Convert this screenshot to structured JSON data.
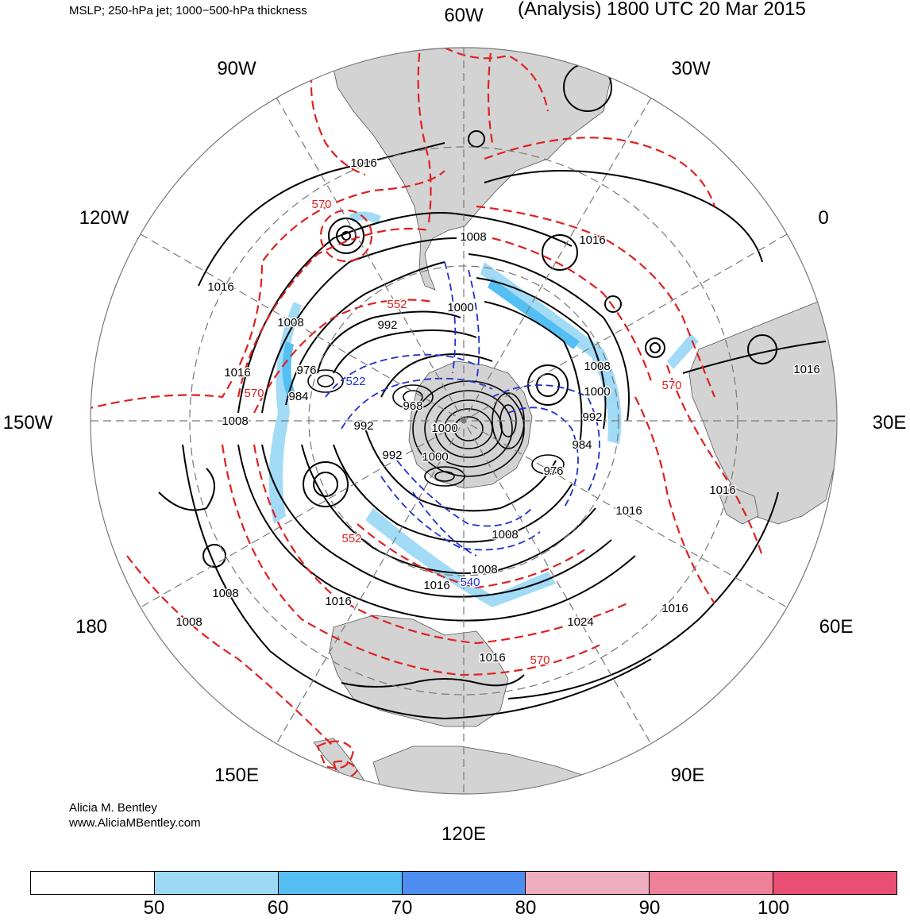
{
  "header": {
    "fields": "MSLP; 250-hPa jet; 1000−500-hPa thickness",
    "valid": "(Analysis) 1800 UTC 20 Mar 2015"
  },
  "longitudes": [
    "60W",
    "30W",
    "0",
    "30E",
    "60E",
    "90E",
    "120E",
    "150E",
    "180",
    "150W",
    "120W",
    "90W"
  ],
  "isobar_labels": [
    "1016",
    "1008",
    "1016",
    "1016",
    "1008",
    "992",
    "976",
    "984",
    "1016",
    "992",
    "968",
    "1008",
    "992",
    "1000",
    "1000",
    "992",
    "984",
    "976",
    "1008",
    "1000",
    "1016",
    "1024",
    "1016",
    "1016",
    "1008",
    "1016",
    "1016",
    "1008",
    "1008",
    "1016",
    "1016",
    "1008",
    "1000"
  ],
  "thickness_labels": [
    "570",
    "552",
    "570",
    "570",
    "552",
    "522",
    "540",
    "570"
  ],
  "credit": {
    "author": "Alicia M. Bentley",
    "site": "www.AliciaMBentley.com"
  },
  "colorbar": {
    "colors": [
      "#ffffff",
      "#9dd9f6",
      "#55bff3",
      "#4d8ef0",
      "#efaebf",
      "#ee8098",
      "#e84f73"
    ],
    "ticks": [
      "50",
      "60",
      "70",
      "80",
      "90",
      "100"
    ]
  },
  "land_color": "#d3d3d3",
  "isobar_color": "#000000",
  "thickness_color": "#e02020",
  "cold_thickness_color": "#1f2fcf"
}
